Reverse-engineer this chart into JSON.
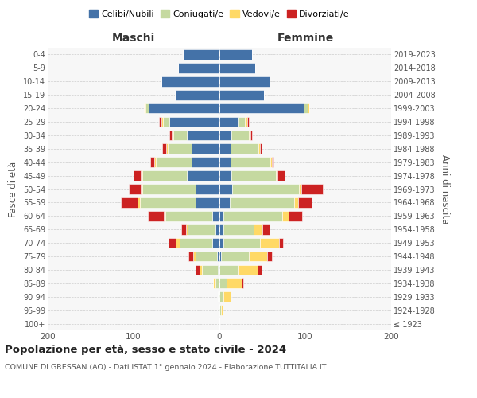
{
  "age_groups": [
    "100+",
    "95-99",
    "90-94",
    "85-89",
    "80-84",
    "75-79",
    "70-74",
    "65-69",
    "60-64",
    "55-59",
    "50-54",
    "45-49",
    "40-44",
    "35-39",
    "30-34",
    "25-29",
    "20-24",
    "15-19",
    "10-14",
    "5-9",
    "0-4"
  ],
  "birth_years": [
    "≤ 1923",
    "1924-1928",
    "1929-1933",
    "1934-1938",
    "1939-1943",
    "1944-1948",
    "1949-1953",
    "1954-1958",
    "1959-1963",
    "1964-1968",
    "1969-1973",
    "1974-1978",
    "1979-1983",
    "1984-1988",
    "1989-1993",
    "1994-1998",
    "1999-2003",
    "2004-2008",
    "2009-2013",
    "2014-2018",
    "2019-2023"
  ],
  "maschi": {
    "celibi": [
      0,
      0,
      0,
      0,
      2,
      3,
      8,
      5,
      8,
      28,
      28,
      38,
      32,
      32,
      38,
      58,
      82,
      52,
      68,
      48,
      43
    ],
    "coniugati": [
      0,
      0,
      2,
      5,
      18,
      25,
      38,
      32,
      55,
      65,
      62,
      52,
      42,
      28,
      16,
      8,
      4,
      0,
      0,
      0,
      0
    ],
    "vedovi": [
      0,
      0,
      0,
      2,
      3,
      3,
      5,
      2,
      2,
      2,
      2,
      2,
      2,
      2,
      2,
      2,
      2,
      0,
      0,
      0,
      0
    ],
    "divorziati": [
      0,
      0,
      0,
      0,
      5,
      5,
      8,
      5,
      18,
      20,
      14,
      8,
      5,
      5,
      2,
      2,
      0,
      0,
      0,
      0,
      0
    ]
  },
  "femmine": {
    "nubili": [
      0,
      0,
      0,
      0,
      0,
      2,
      5,
      5,
      5,
      12,
      15,
      14,
      13,
      13,
      14,
      22,
      98,
      52,
      58,
      42,
      38
    ],
    "coniugate": [
      0,
      2,
      5,
      8,
      22,
      32,
      42,
      35,
      68,
      75,
      78,
      52,
      46,
      32,
      20,
      8,
      5,
      0,
      0,
      0,
      0
    ],
    "vedove": [
      0,
      2,
      8,
      18,
      22,
      22,
      22,
      10,
      8,
      5,
      2,
      2,
      2,
      2,
      2,
      2,
      2,
      0,
      0,
      0,
      0
    ],
    "divorziate": [
      0,
      0,
      0,
      2,
      5,
      5,
      5,
      8,
      15,
      15,
      25,
      8,
      2,
      2,
      2,
      2,
      0,
      0,
      0,
      0,
      0
    ]
  },
  "colors": {
    "celibi": "#4472a8",
    "coniugati": "#c5d9a0",
    "vedovi": "#ffd966",
    "divorziati": "#cc2222"
  },
  "title": "Popolazione per età, sesso e stato civile - 2024",
  "subtitle": "COMUNE DI GRESSAN (AO) - Dati ISTAT 1° gennaio 2024 - Elaborazione TUTTITALIA.IT",
  "xlabel_maschi": "Maschi",
  "xlabel_femmine": "Femmine",
  "ylabel_left": "Fasce di età",
  "ylabel_right": "Anni di nascita",
  "xlim": 200,
  "legend_labels": [
    "Celibi/Nubili",
    "Coniugati/e",
    "Vedovi/e",
    "Divorziati/e"
  ]
}
